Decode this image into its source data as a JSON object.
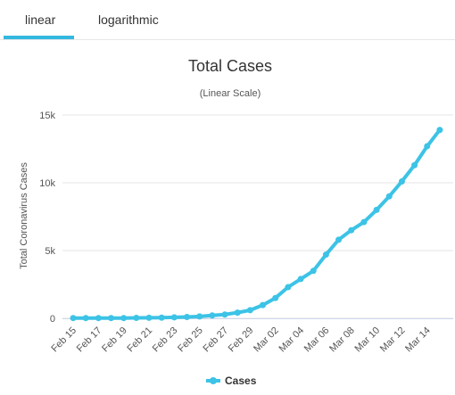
{
  "tabs": [
    {
      "label": "linear",
      "active": true
    },
    {
      "label": "logarithmic",
      "active": false
    }
  ],
  "accent_color": "#3cc3e6",
  "chart_data": {
    "type": "line",
    "title": "Total Cases",
    "subtitle": "(Linear Scale)",
    "xlabel": "",
    "ylabel": "Total Coronavirus Cases",
    "ylim": [
      0,
      15000
    ],
    "yticks": [
      0,
      5000,
      10000,
      15000
    ],
    "ytick_labels": [
      "0",
      "5k",
      "10k",
      "15k"
    ],
    "x_tick_labels": [
      "Feb 15",
      "Feb 17",
      "Feb 19",
      "Feb 21",
      "Feb 23",
      "Feb 25",
      "Feb 27",
      "Feb 29",
      "Mar 02",
      "Mar 04",
      "Mar 06",
      "Mar 08",
      "Mar 10",
      "Mar 12",
      "Mar 14"
    ],
    "categories": [
      "Feb 15",
      "Feb 16",
      "Feb 17",
      "Feb 18",
      "Feb 19",
      "Feb 20",
      "Feb 21",
      "Feb 22",
      "Feb 23",
      "Feb 24",
      "Feb 25",
      "Feb 26",
      "Feb 27",
      "Feb 28",
      "Feb 29",
      "Mar 01",
      "Mar 02",
      "Mar 03",
      "Mar 04",
      "Mar 05",
      "Mar 06",
      "Mar 07",
      "Mar 08",
      "Mar 09",
      "Mar 10",
      "Mar 11",
      "Mar 12",
      "Mar 13",
      "Mar 14",
      "Mar 15"
    ],
    "series": [
      {
        "name": "Cases",
        "color": "#3cc3e6",
        "values": [
          20,
          20,
          20,
          20,
          20,
          30,
          40,
          50,
          70,
          100,
          140,
          210,
          280,
          420,
          600,
          980,
          1500,
          2300,
          2900,
          3500,
          4700,
          5800,
          6500,
          7100,
          8000,
          9000,
          10100,
          11300,
          12700,
          13900
        ]
      }
    ],
    "grid": "horizontal",
    "legend": "bottom-center"
  }
}
